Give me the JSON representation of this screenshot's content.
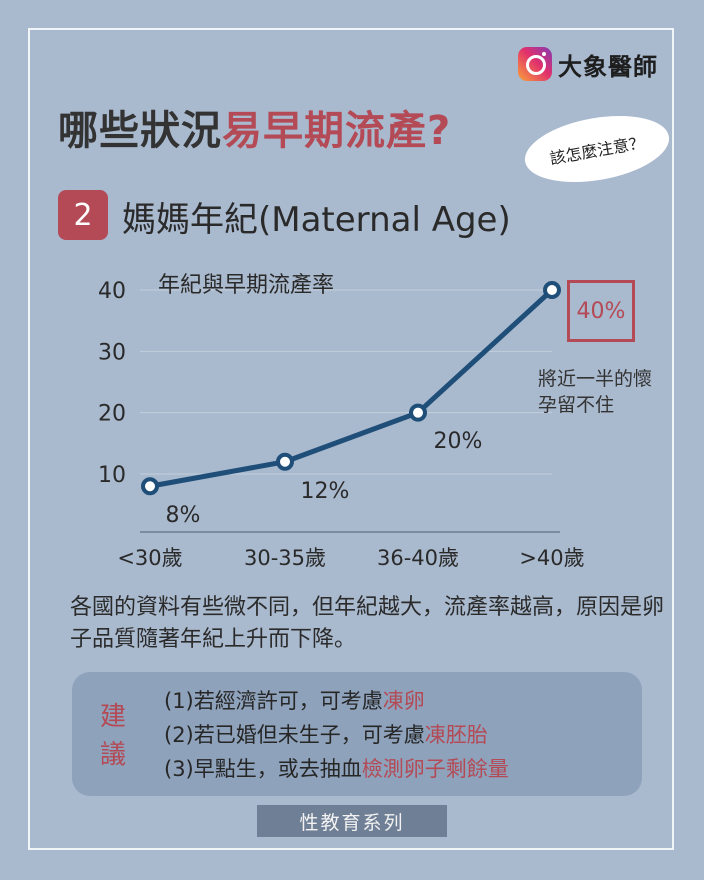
{
  "brand": {
    "name": "大象醫師",
    "icon": "instagram-icon"
  },
  "headline": {
    "part1": "哪些狀況",
    "part2": "易早期流產?"
  },
  "bubble": {
    "text": "該怎麼注意？"
  },
  "section": {
    "number": "2",
    "title": "媽媽年紀(Maternal Age)"
  },
  "chart_data": {
    "type": "line",
    "title": "年紀與早期流產率",
    "xlabel": "",
    "ylabel": "",
    "categories": [
      "<30歲",
      "30-35歲",
      "36-40歲",
      ">40歲"
    ],
    "values": [
      8,
      12,
      20,
      40
    ],
    "data_labels": [
      "8%",
      "12%",
      "20%",
      "40%"
    ],
    "yticks": [
      10,
      20,
      30,
      40
    ],
    "ylim": [
      0,
      40
    ],
    "grid": true,
    "line_color": "#1f4e79",
    "highlight_color": "#b34a55"
  },
  "callout": {
    "note": "將近一半的懷孕留不住"
  },
  "body": {
    "text": "各國的資料有些微不同，但年紀越大，流產率越高，原因是卵子品質隨著年紀上升而下降。"
  },
  "advice": {
    "tag": "建議",
    "items": [
      {
        "plain": "(1)若經濟許可，可考慮",
        "red": "凍卵"
      },
      {
        "plain": "(2)若已婚但未生子，可考慮",
        "red": "凍胚胎"
      },
      {
        "plain": "(3)早點生，或去抽血",
        "red": "檢測卵子剩餘量"
      }
    ]
  },
  "footer": {
    "label": "性教育系列"
  },
  "colors": {
    "background": "#a9b9ce",
    "accent": "#b34a55",
    "advice_box": "#8ea2bb"
  }
}
